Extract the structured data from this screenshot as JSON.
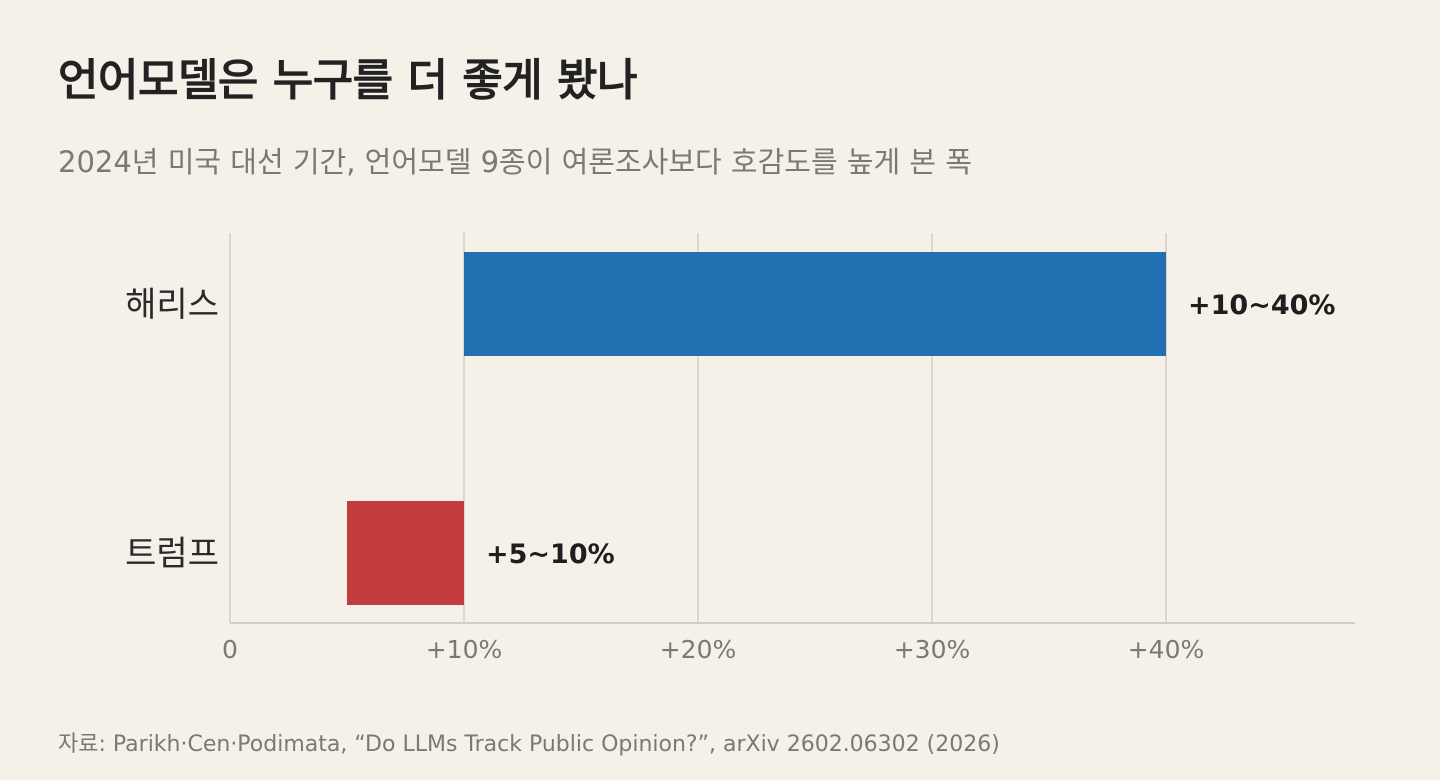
{
  "title": "언어모델은 누구를 더 좋게 봤나",
  "subtitle": "2024년 미국 대선 기간, 언어모델 9종이 여론조사보다 호감도를 높게 본 폭",
  "source": "자료: Parikh·Cen·Podimata, “Do LLMs Track Public Opinion?”, arXiv 2602.06302 (2026)",
  "chart_data": {
    "type": "bar",
    "orientation": "horizontal",
    "title": "언어모델은 누구를 더 좋게 봤나",
    "subtitle": "2024년 미국 대선 기간, 언어모델 9종이 여론조사보다 호감도를 높게 본 폭",
    "categories": [
      "해리스",
      "트럼프"
    ],
    "ranges": [
      [
        10,
        40
      ],
      [
        5,
        10
      ]
    ],
    "data_labels": [
      "+10~40%",
      "+5~10%"
    ],
    "colors": [
      "#2270b2",
      "#c33c3d"
    ],
    "xlim": [
      0,
      48
    ],
    "xticks": [
      0,
      10,
      20,
      30,
      40
    ],
    "xtick_labels": [
      "0",
      "+10%",
      "+20%",
      "+30%",
      "+40%"
    ],
    "xlabel": "",
    "ylabel": "",
    "grid": "vertical",
    "legend": "none"
  }
}
